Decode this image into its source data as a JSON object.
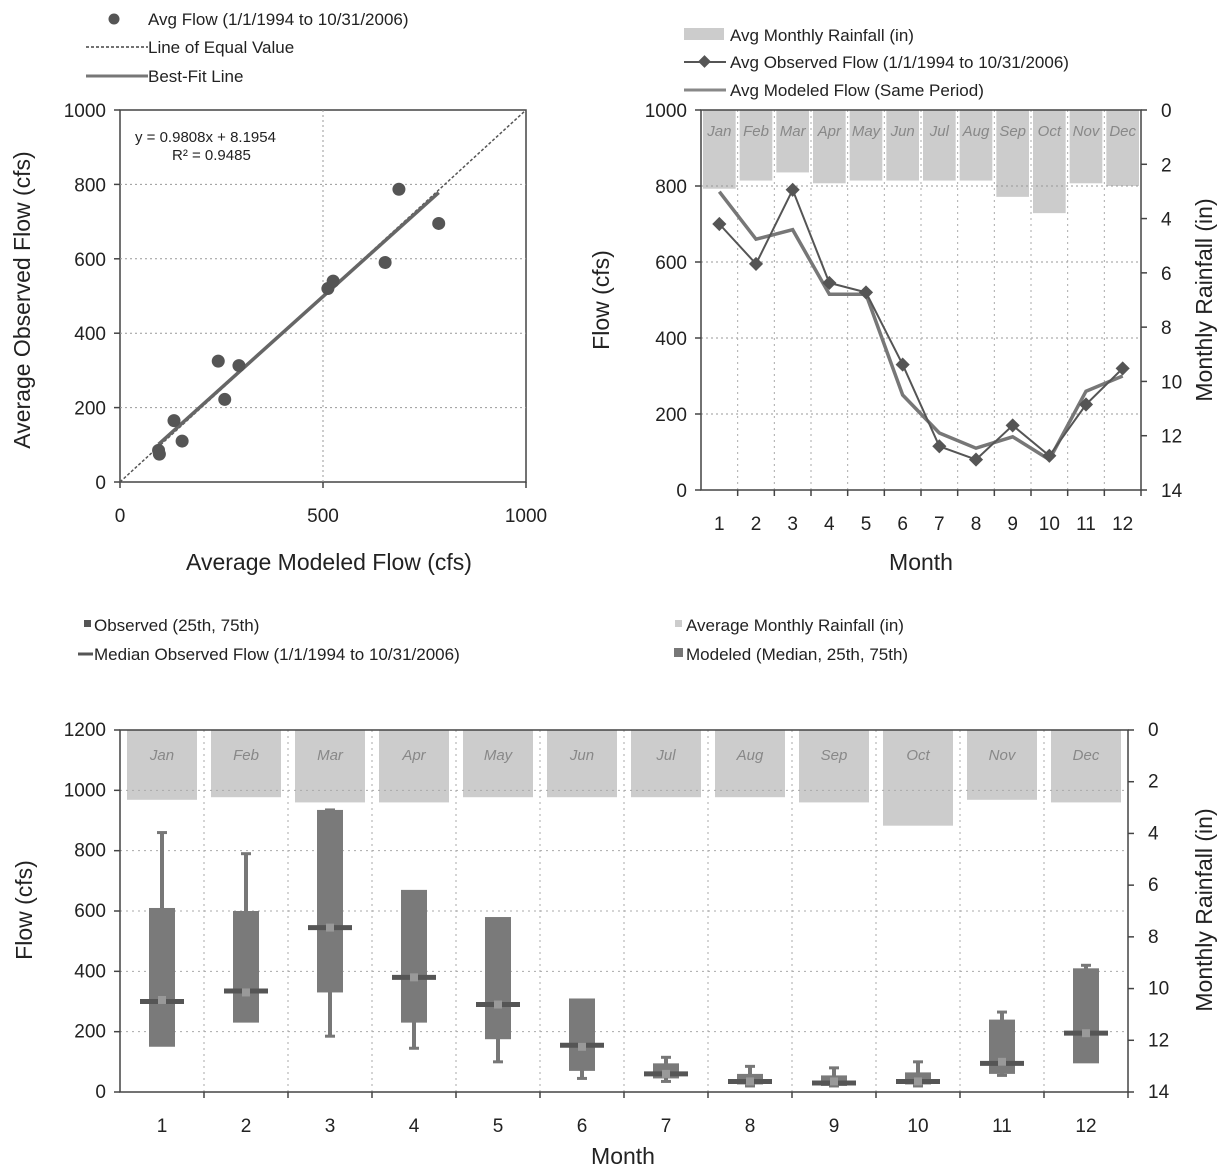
{
  "chart_data": [
    {
      "type": "scatter",
      "xlabel": "Average Modeled Flow (cfs)",
      "ylabel": "Average Observed Flow (cfs)",
      "xlim": [
        0,
        1000
      ],
      "ylim": [
        0,
        1000
      ],
      "xticks": [
        "0",
        "500",
        "1000"
      ],
      "yticks": [
        "0",
        "200",
        "400",
        "600",
        "800",
        "1000"
      ],
      "legend": [
        "Avg Flow (1/1/1994 to 10/31/2006)",
        "Line of Equal Value",
        "Best-Fit Line"
      ],
      "equation": "y = 0.9808x + 8.1954",
      "r2": "R² = 0.9485",
      "fit": {
        "slope": 0.9808,
        "intercept": 8.1954,
        "x_range": [
          95,
          785
        ]
      },
      "points": [
        {
          "x": 95,
          "y": 85
        },
        {
          "x": 97,
          "y": 75
        },
        {
          "x": 133,
          "y": 165
        },
        {
          "x": 153,
          "y": 110
        },
        {
          "x": 242,
          "y": 325
        },
        {
          "x": 258,
          "y": 222
        },
        {
          "x": 293,
          "y": 313
        },
        {
          "x": 512,
          "y": 520
        },
        {
          "x": 525,
          "y": 540
        },
        {
          "x": 653,
          "y": 590
        },
        {
          "x": 687,
          "y": 787
        },
        {
          "x": 785,
          "y": 695
        }
      ],
      "grid": true
    },
    {
      "type": "line",
      "xlabel": "Month",
      "ylabel": "Flow (cfs)",
      "y2label": "Monthly Rainfall (in)",
      "ylim": [
        0,
        1000
      ],
      "y2lim": [
        0,
        14
      ],
      "yticks": [
        "0",
        "200",
        "400",
        "600",
        "800",
        "1000"
      ],
      "y2ticks": [
        "0",
        "2",
        "4",
        "6",
        "8",
        "10",
        "12",
        "14"
      ],
      "categories": [
        "1",
        "2",
        "3",
        "4",
        "5",
        "6",
        "7",
        "8",
        "9",
        "10",
        "11",
        "12"
      ],
      "month_names": [
        "Jan",
        "Feb",
        "Mar",
        "Apr",
        "May",
        "Jun",
        "Jul",
        "Aug",
        "Sep",
        "Oct",
        "Nov",
        "Dec"
      ],
      "legend": [
        "Avg Monthly Rainfall (in)",
        "Avg Observed Flow (1/1/1994 to 10/31/2006)",
        "Avg Modeled Flow (Same Period)"
      ],
      "rainfall": [
        2.9,
        2.6,
        2.3,
        2.7,
        2.6,
        2.6,
        2.6,
        2.6,
        3.2,
        3.8,
        2.7,
        2.8
      ],
      "series": [
        {
          "name": "Avg Observed Flow (1/1/1994 to 10/31/2006)",
          "values": [
            700,
            595,
            790,
            545,
            520,
            330,
            115,
            80,
            170,
            90,
            225,
            320
          ]
        },
        {
          "name": "Avg Modeled Flow (Same Period)",
          "values": [
            785,
            660,
            685,
            515,
            515,
            250,
            150,
            110,
            140,
            80,
            260,
            300
          ]
        }
      ],
      "grid": true
    },
    {
      "type": "box",
      "xlabel": "Month",
      "ylabel": "Flow (cfs)",
      "y2label": "Monthly Rainfall (in)",
      "ylim": [
        0,
        1200
      ],
      "y2lim": [
        0,
        14
      ],
      "yticks": [
        "0",
        "200",
        "400",
        "600",
        "800",
        "1000",
        "1200"
      ],
      "y2ticks": [
        "0",
        "2",
        "4",
        "6",
        "8",
        "10",
        "12",
        "14"
      ],
      "categories": [
        "1",
        "2",
        "3",
        "4",
        "5",
        "6",
        "7",
        "8",
        "9",
        "10",
        "11",
        "12"
      ],
      "month_names": [
        "Jan",
        "Feb",
        "Mar",
        "Apr",
        "May",
        "Jun",
        "Jul",
        "Aug",
        "Sep",
        "Oct",
        "Nov",
        "Dec"
      ],
      "legend": [
        "Observed (25th, 75th)",
        "Median Observed Flow (1/1/1994 to 10/31/2006)",
        "Average Monthly Rainfall (in)",
        "Modeled (Median, 25th, 75th)"
      ],
      "rainfall": [
        2.7,
        2.6,
        2.8,
        2.8,
        2.6,
        2.6,
        2.6,
        2.6,
        2.8,
        3.7,
        2.7,
        2.8
      ],
      "observed": [
        {
          "q1": 150,
          "median": 300,
          "q3": 610
        },
        {
          "q1": 230,
          "median": 335,
          "q3": 600
        },
        {
          "q1": 330,
          "median": 545,
          "q3": 935
        },
        {
          "q1": 230,
          "median": 380,
          "q3": 670
        },
        {
          "q1": 175,
          "median": 290,
          "q3": 580
        },
        {
          "q1": 70,
          "median": 155,
          "q3": 310
        },
        {
          "q1": 45,
          "median": 60,
          "q3": 95
        },
        {
          "q1": 25,
          "median": 35,
          "q3": 60
        },
        {
          "q1": 20,
          "median": 30,
          "q3": 55
        },
        {
          "q1": 25,
          "median": 35,
          "q3": 65
        },
        {
          "q1": 60,
          "median": 95,
          "q3": 240
        },
        {
          "q1": 95,
          "median": 195,
          "q3": 410
        }
      ],
      "modeled": [
        {
          "q1": 165,
          "median": 305,
          "q3": 860
        },
        {
          "q1": 240,
          "median": 330,
          "q3": 790
        },
        {
          "q1": 185,
          "median": 545,
          "q3": 935
        },
        {
          "q1": 145,
          "median": 380,
          "q3": 480
        },
        {
          "q1": 100,
          "median": 290,
          "q3": 560
        },
        {
          "q1": 45,
          "median": 150,
          "q3": 230
        },
        {
          "q1": 35,
          "median": 60,
          "q3": 115
        },
        {
          "q1": 20,
          "median": 35,
          "q3": 85
        },
        {
          "q1": 20,
          "median": 35,
          "q3": 80
        },
        {
          "q1": 20,
          "median": 35,
          "q3": 100
        },
        {
          "q1": 55,
          "median": 100,
          "q3": 265
        },
        {
          "q1": 110,
          "median": 195,
          "q3": 420
        }
      ],
      "grid": true
    }
  ]
}
